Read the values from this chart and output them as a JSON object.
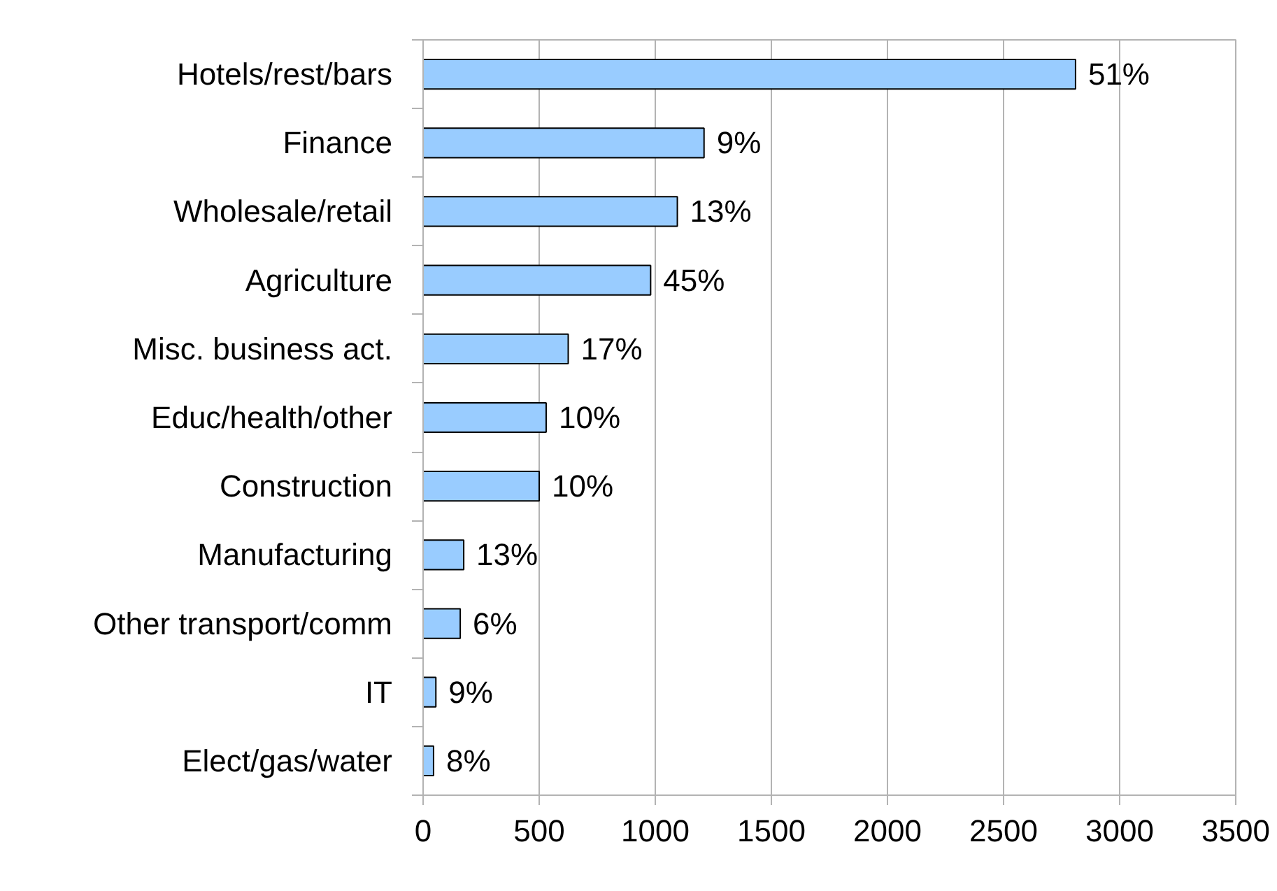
{
  "chart_data": {
    "type": "bar",
    "orientation": "horizontal",
    "categories": [
      "Hotels/rest/bars",
      "Finance",
      "Wholesale/retail",
      "Agriculture",
      "Misc. business act.",
      "Educ/health/other",
      "Construction",
      "Manufacturing",
      "Other transport/comm",
      "IT",
      "Elect/gas/water"
    ],
    "values": [
      2810,
      1210,
      1095,
      980,
      625,
      530,
      500,
      175,
      160,
      55,
      45
    ],
    "color": "#99ccff",
    "annotations": [
      {
        "text": "51%",
        "x": 2810,
        "y": "Hotels/rest/bars"
      },
      {
        "text": "9%",
        "x": 1210,
        "y": "Finance"
      },
      {
        "text": "13%",
        "x": 1095,
        "y": "Wholesale/retail"
      },
      {
        "text": "45%",
        "x": 980,
        "y": "Agriculture"
      },
      {
        "text": "17%",
        "x": 625,
        "y": "Misc. business act."
      },
      {
        "text": "10%",
        "x": 530,
        "y": "Educ/health/other"
      },
      {
        "text": "10%",
        "x": 500,
        "y": "Construction"
      },
      {
        "text": "13%",
        "x": 175,
        "y": "Manufacturing"
      },
      {
        "text": "6%",
        "x": 160,
        "y": "Other transport/comm"
      },
      {
        "text": "9%",
        "x": 55,
        "y": "IT"
      },
      {
        "text": "8%",
        "x": 45,
        "y": "Elect/gas/water"
      }
    ],
    "xlim": [
      0,
      3500
    ],
    "xticks": [
      0,
      500,
      1000,
      1500,
      2000,
      2500,
      3000,
      3500
    ],
    "grid": "x"
  }
}
